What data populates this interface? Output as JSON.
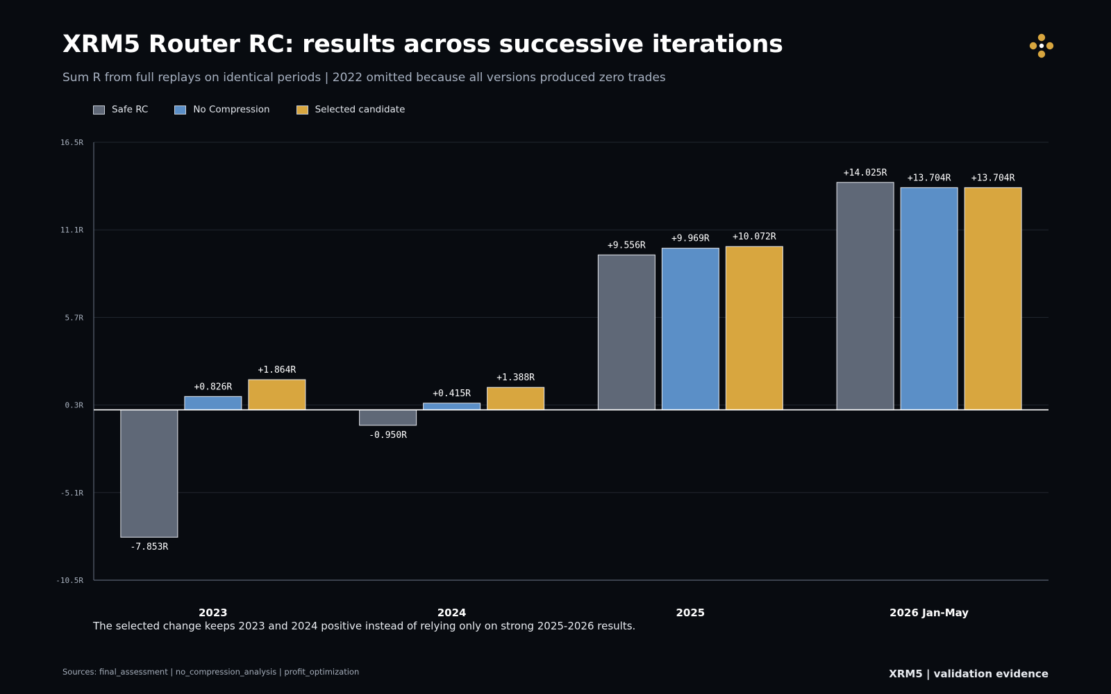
{
  "header": {
    "title": "XRM5 Router RC: results across successive iterations",
    "subtitle": "Sum R from full replays on identical periods | 2022 omitted because all versions produced zero trades"
  },
  "logo": {
    "icon": "clover-dots-icon",
    "color": "#d8a63f"
  },
  "colors": {
    "background": "#080b10",
    "grid": "#222831",
    "axis": "#5a6473",
    "zero_line": "#ffffff"
  },
  "chart_data": {
    "type": "bar",
    "categories": [
      "2023",
      "2024",
      "2025",
      "2026 Jan-May"
    ],
    "series": [
      {
        "name": "Safe RC",
        "color": "#5f6877",
        "values": [
          -7.853,
          -0.95,
          9.556,
          14.025
        ],
        "labels": [
          "-7.853R",
          "-0.950R",
          "+9.556R",
          "+14.025R"
        ]
      },
      {
        "name": "No Compression",
        "color": "#5b8fc7",
        "values": [
          0.826,
          0.415,
          9.969,
          13.704
        ],
        "labels": [
          "+0.826R",
          "+0.415R",
          "+9.969R",
          "+13.704R"
        ]
      },
      {
        "name": "Selected candidate",
        "color": "#d8a63f",
        "values": [
          1.864,
          1.388,
          10.072,
          13.704
        ],
        "labels": [
          "+1.864R",
          "+1.388R",
          "+10.072R",
          "+13.704R"
        ]
      }
    ],
    "yticks": [
      16.5,
      11.1,
      5.7,
      0.3,
      -5.1,
      -10.5
    ],
    "ytick_labels": [
      "16.5R",
      "11.1R",
      "5.7R",
      "0.3R",
      "-5.1R",
      "-10.5R"
    ],
    "ylim": [
      -10.5,
      16.5
    ],
    "grid": true,
    "legend_position": "top-left"
  },
  "note": "The selected change keeps 2023 and 2024 positive instead of relying only on strong 2025-2026 results.",
  "footer": {
    "sources": "Sources: final_assessment | no_compression_analysis | profit_optimization",
    "brand": "XRM5 | validation evidence"
  }
}
